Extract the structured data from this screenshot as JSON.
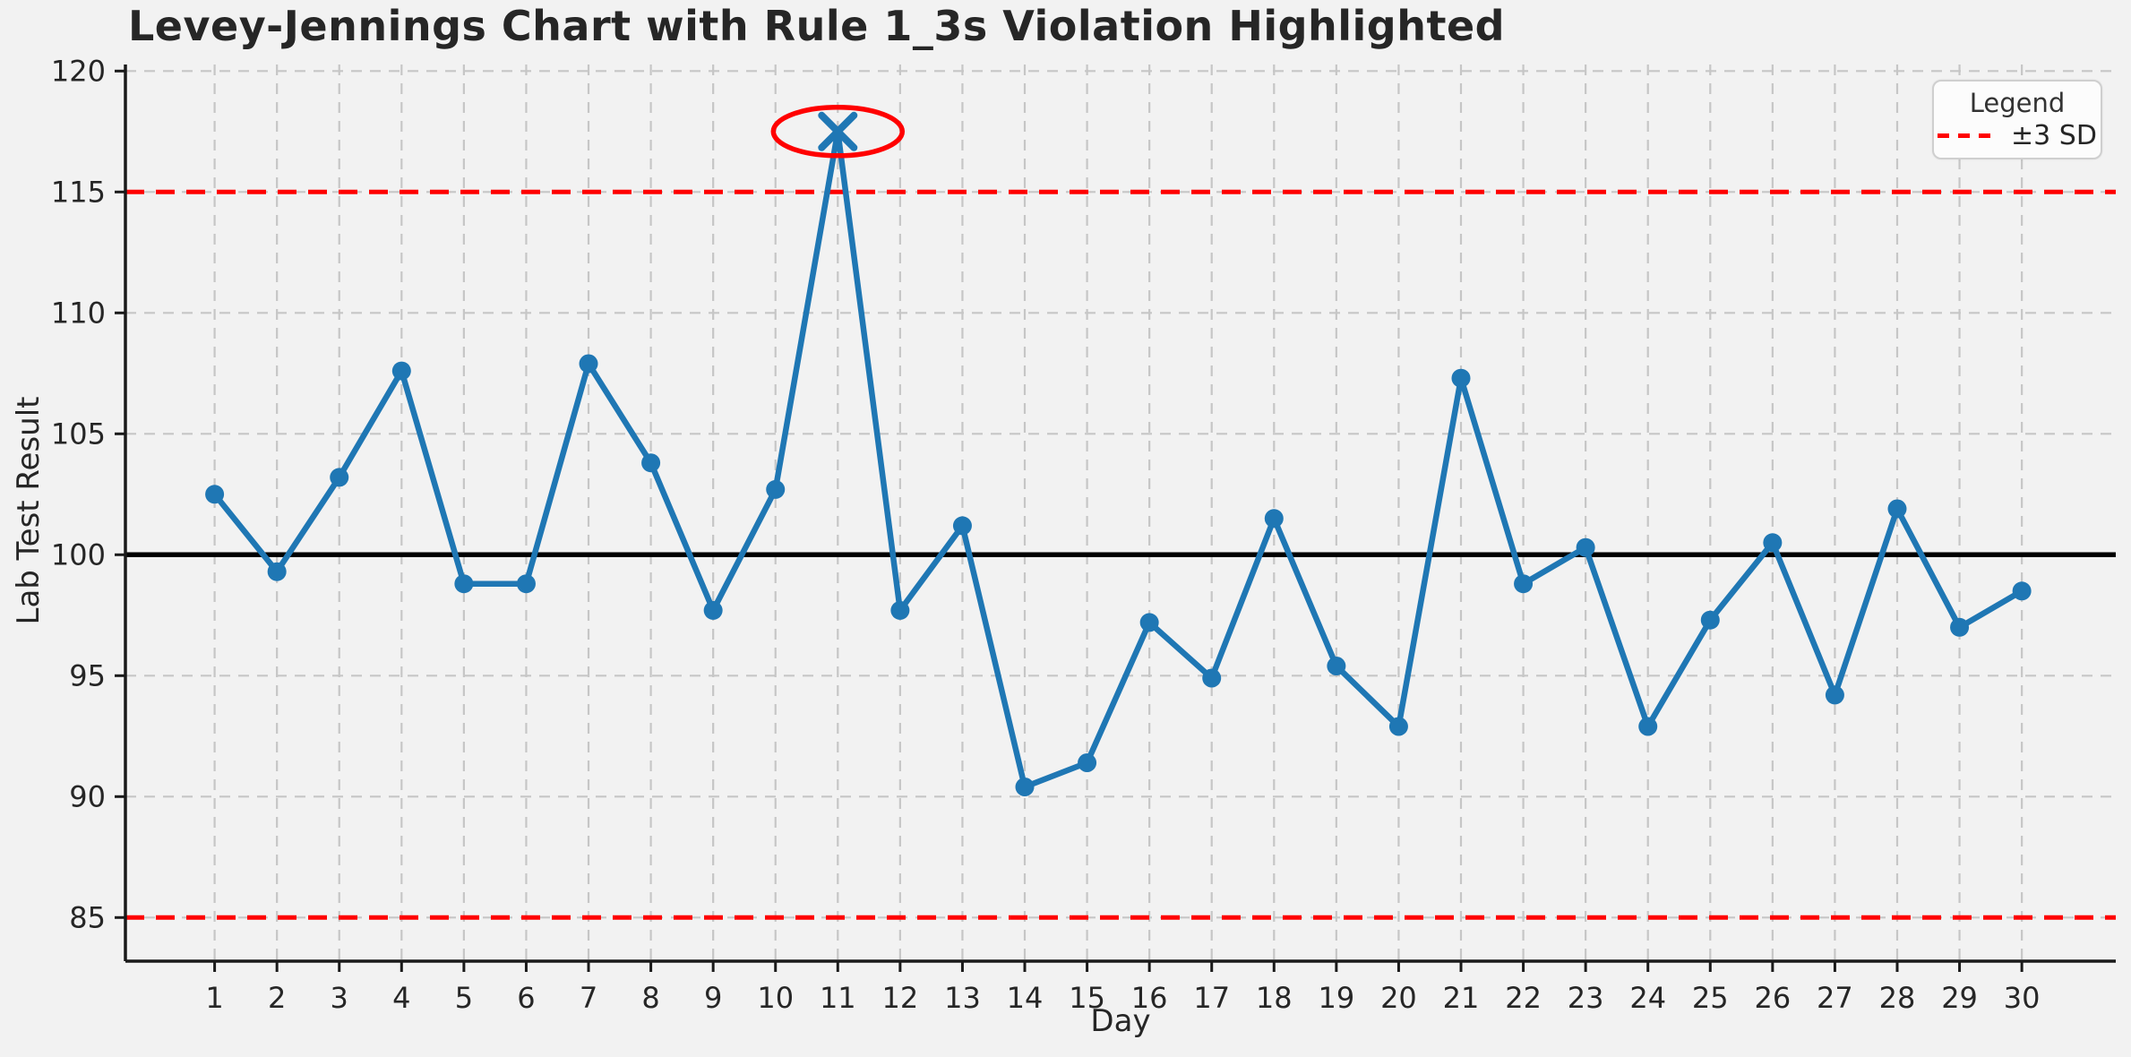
{
  "title": "Levey-Jennings Chart with Rule 1_3s Violation Highlighted",
  "legend": {
    "title": "Legend",
    "items": [
      {
        "label": "±3 SD",
        "style": "red-dashed-line"
      }
    ]
  },
  "chart_data": {
    "type": "line",
    "title": "Levey-Jennings Chart with Rule 1_3s Violation Highlighted",
    "xlabel": "Day",
    "ylabel": "Lab Test Result",
    "x": [
      1,
      2,
      3,
      4,
      5,
      6,
      7,
      8,
      9,
      10,
      11,
      12,
      13,
      14,
      15,
      16,
      17,
      18,
      19,
      20,
      21,
      22,
      23,
      24,
      25,
      26,
      27,
      28,
      29,
      30
    ],
    "series": [
      {
        "name": "Lab Test Result",
        "values": [
          102.5,
          99.3,
          103.2,
          107.6,
          98.8,
          98.8,
          107.9,
          103.8,
          97.7,
          102.7,
          117.5,
          97.7,
          101.2,
          90.4,
          91.4,
          97.2,
          94.9,
          101.5,
          95.4,
          92.9,
          107.3,
          98.8,
          100.3,
          92.9,
          97.3,
          100.5,
          94.2,
          101.9,
          97.0,
          98.5
        ]
      }
    ],
    "mean_line": 100,
    "upper_3sd_line": 115,
    "lower_3sd_line": 85,
    "violation": {
      "day": 11,
      "value": 117.5,
      "rule": "1_3s",
      "marker": "x",
      "highlight": "red-ellipse"
    },
    "yticks": [
      85,
      90,
      95,
      100,
      105,
      110,
      115,
      120
    ],
    "ylim": [
      83.2,
      120.3
    ],
    "xlim": [
      0.55,
      31.5
    ],
    "grid": true,
    "grid_style": "dashed",
    "legend_position": "upper-right",
    "colors": {
      "series": "#1f77b4",
      "mean": "#000000",
      "sd_limits": "#ff0000",
      "grid": "#c6c6c6",
      "background": "#f2f2f2",
      "text": "#262626"
    }
  }
}
